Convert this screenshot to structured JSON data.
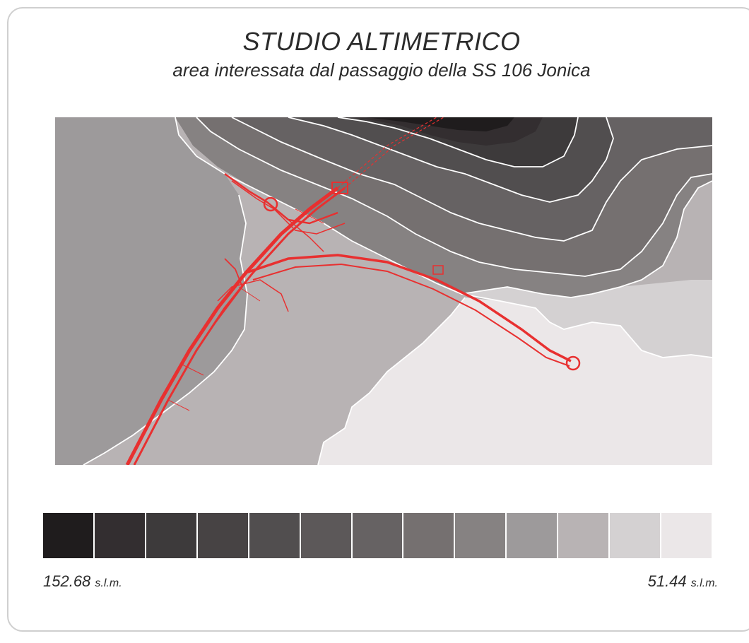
{
  "title": "STUDIO ALTIMETRICO",
  "subtitle": "area interessata dal passaggio della SS 106 Jonica",
  "legend": {
    "colors": [
      "#1f1c1d",
      "#332e30",
      "#3d3a3b",
      "#474344",
      "#514e4f",
      "#5c5859",
      "#666263",
      "#757070",
      "#868282",
      "#9d9a9b",
      "#b8b3b4",
      "#d4d1d2",
      "#ebe7e8"
    ],
    "max_value": "152.68",
    "max_unit": "s.l.m.",
    "min_value": "51.44",
    "min_unit": "s.l.m."
  },
  "map": {
    "road_color": "#e83030",
    "contour_color": "#ffffff"
  }
}
